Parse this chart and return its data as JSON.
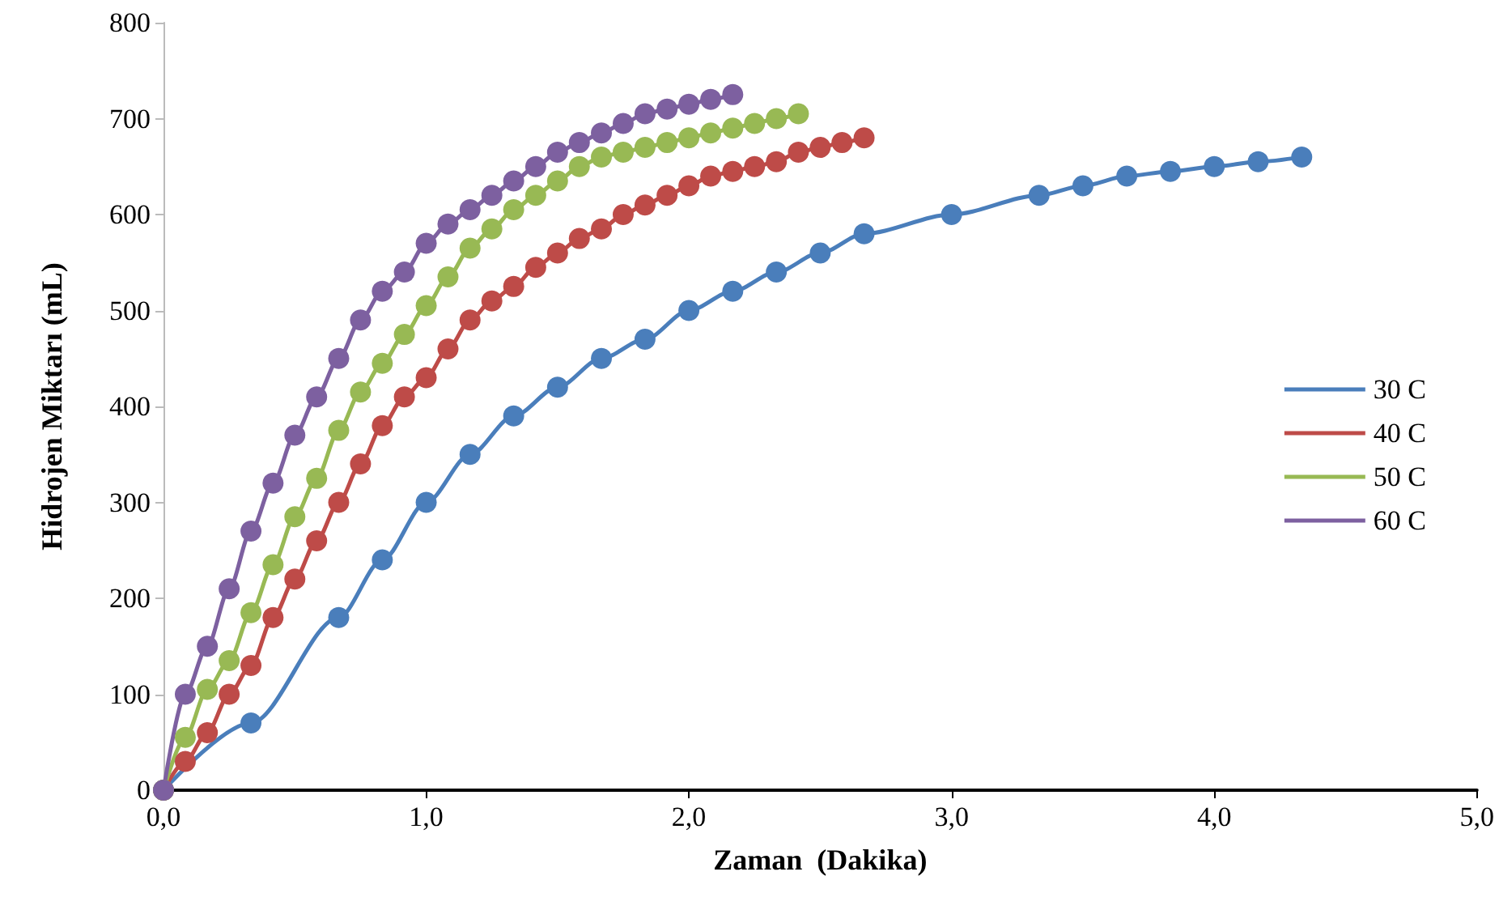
{
  "chart_data": {
    "type": "line",
    "xlabel": "Zaman  (Dakika)",
    "ylabel": "Hidrojen Miktarı (mL)",
    "marker": "circle",
    "legend": "right",
    "grid": false,
    "xlim": [
      0,
      5
    ],
    "xticks": [
      {
        "value": 0,
        "label": "0,0"
      },
      {
        "value": 1,
        "label": "1,0"
      },
      {
        "value": 2,
        "label": "2,0"
      },
      {
        "value": 3,
        "label": "3,0"
      },
      {
        "value": 4,
        "label": "4,0"
      },
      {
        "value": 5,
        "label": "5,0"
      }
    ],
    "ylim": [
      0,
      800
    ],
    "yticks": [
      0,
      100,
      200,
      300,
      400,
      500,
      600,
      700,
      800
    ],
    "series": [
      {
        "name": "30 C",
        "color": "#4a7ebb",
        "x": [
          0,
          0.333,
          0.667,
          0.833,
          1.0,
          1.167,
          1.333,
          1.5,
          1.667,
          1.833,
          2.0,
          2.167,
          2.333,
          2.5,
          2.667,
          3.0,
          3.333,
          3.5,
          3.667,
          3.833,
          4.0,
          4.167,
          4.333
        ],
        "values": [
          0,
          70,
          180,
          240,
          300,
          350,
          390,
          420,
          450,
          470,
          500,
          520,
          540,
          560,
          580,
          600,
          620,
          630,
          640,
          645,
          650,
          655,
          660
        ]
      },
      {
        "name": "40 C",
        "color": "#be4b48",
        "x": [
          0,
          0.083,
          0.167,
          0.25,
          0.333,
          0.417,
          0.5,
          0.583,
          0.667,
          0.75,
          0.833,
          0.917,
          1.0,
          1.083,
          1.167,
          1.25,
          1.333,
          1.417,
          1.5,
          1.583,
          1.667,
          1.75,
          1.833,
          1.917,
          2.0,
          2.083,
          2.167,
          2.25,
          2.333,
          2.417,
          2.5,
          2.583,
          2.667
        ],
        "values": [
          0,
          30,
          60,
          100,
          130,
          180,
          220,
          260,
          300,
          340,
          380,
          410,
          430,
          460,
          490,
          510,
          525,
          545,
          560,
          575,
          585,
          600,
          610,
          620,
          630,
          640,
          645,
          650,
          655,
          665,
          670,
          675,
          680
        ]
      },
      {
        "name": "50 C",
        "color": "#98b954",
        "x": [
          0,
          0.083,
          0.167,
          0.25,
          0.333,
          0.417,
          0.5,
          0.583,
          0.667,
          0.75,
          0.833,
          0.917,
          1.0,
          1.083,
          1.167,
          1.25,
          1.333,
          1.417,
          1.5,
          1.583,
          1.667,
          1.75,
          1.833,
          1.917,
          2.0,
          2.083,
          2.167,
          2.25,
          2.333,
          2.417
        ],
        "values": [
          0,
          55,
          105,
          135,
          185,
          235,
          285,
          325,
          375,
          415,
          445,
          475,
          505,
          535,
          565,
          585,
          605,
          620,
          635,
          650,
          660,
          665,
          670,
          675,
          680,
          685,
          690,
          695,
          700,
          705
        ]
      },
      {
        "name": "60 C",
        "color": "#7d60a0",
        "x": [
          0,
          0.083,
          0.167,
          0.25,
          0.333,
          0.417,
          0.5,
          0.583,
          0.667,
          0.75,
          0.833,
          0.917,
          1.0,
          1.083,
          1.167,
          1.25,
          1.333,
          1.417,
          1.5,
          1.583,
          1.667,
          1.75,
          1.833,
          1.917,
          2.0,
          2.083,
          2.167
        ],
        "values": [
          0,
          100,
          150,
          210,
          270,
          320,
          370,
          410,
          450,
          490,
          520,
          540,
          570,
          590,
          605,
          620,
          635,
          650,
          665,
          675,
          685,
          695,
          705,
          710,
          715,
          720,
          725
        ]
      }
    ]
  }
}
